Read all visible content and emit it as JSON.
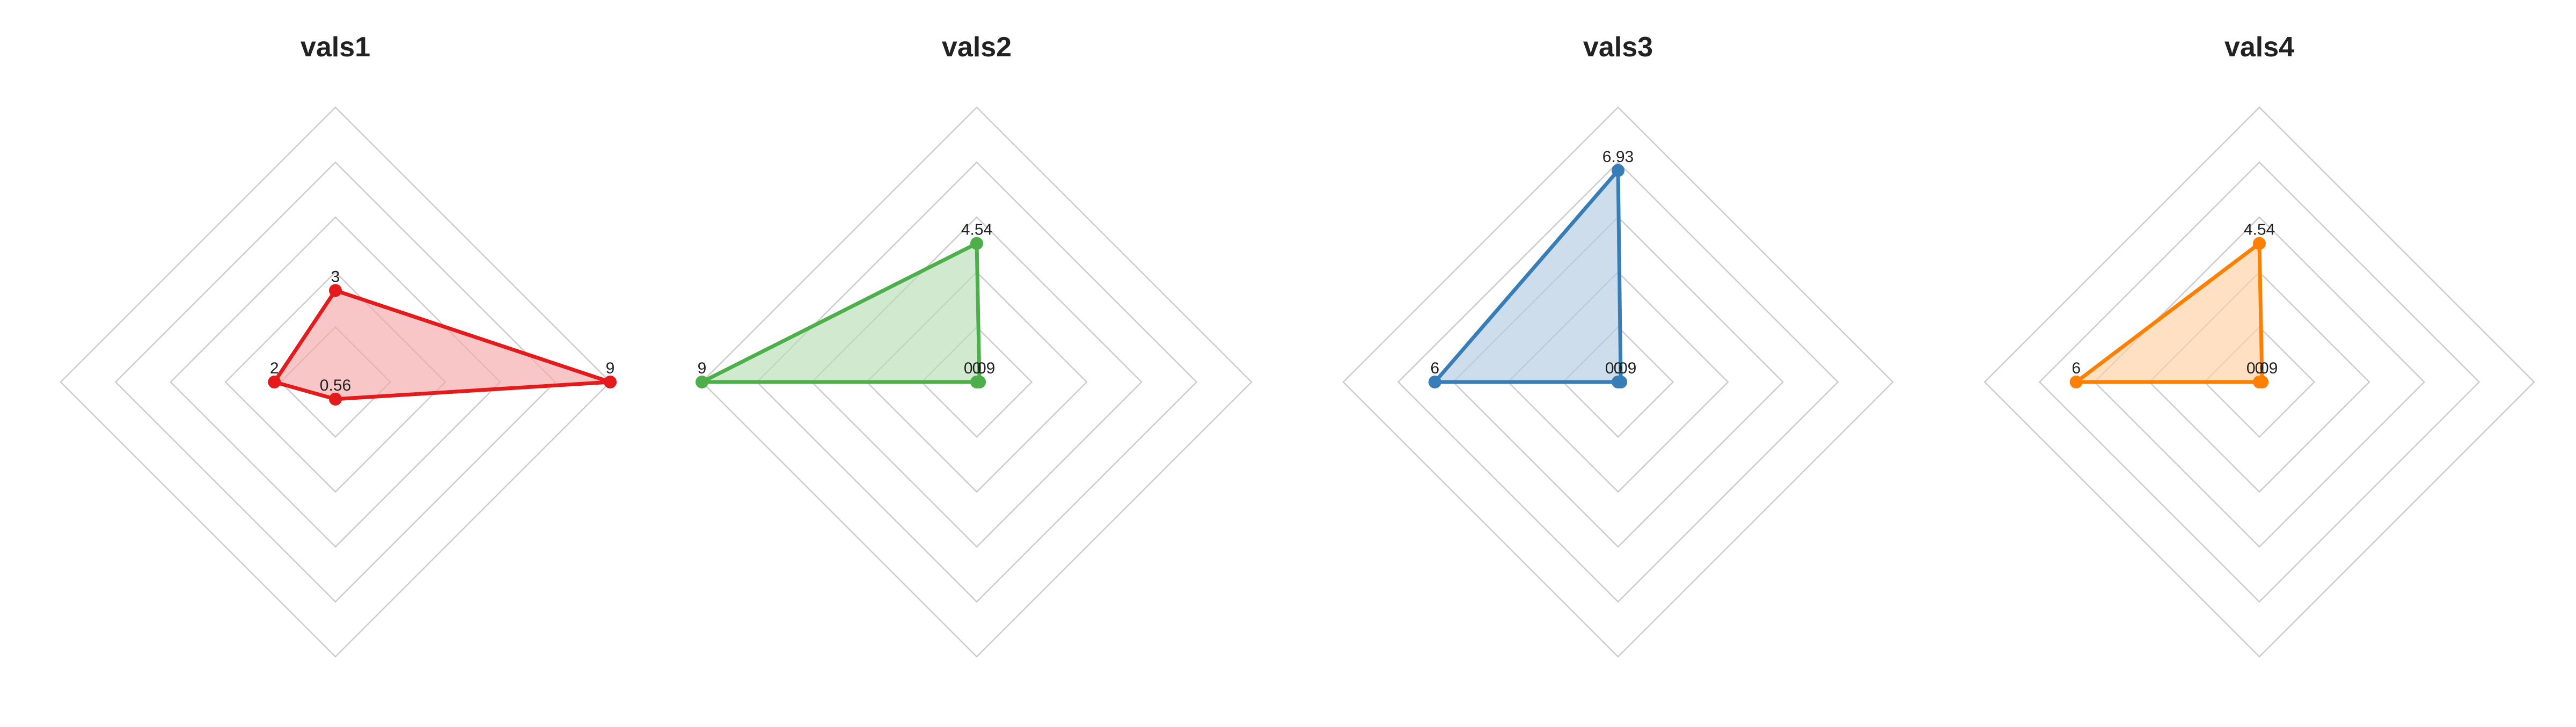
{
  "chart_data": [
    {
      "type": "radar",
      "title": "vals1",
      "color": "#e41a1c",
      "fill_color": "#f4a8a9",
      "axis_max": 9,
      "grid_levels": 5,
      "grid": true,
      "values": [
        3,
        9,
        0.56,
        2
      ],
      "labels": [
        "3",
        "9",
        "0.56",
        "2"
      ]
    },
    {
      "type": "radar",
      "title": "vals2",
      "color": "#4daf4a",
      "fill_color": "#b8dfb6",
      "axis_max": 9,
      "grid_levels": 5,
      "grid": true,
      "values": [
        4.54,
        0.09,
        0,
        9
      ],
      "labels": [
        "4.54",
        "0.09",
        "0",
        "9"
      ]
    },
    {
      "type": "radar",
      "title": "vals3",
      "color": "#377eb8",
      "fill_color": "#b3cbe2",
      "axis_max": 9,
      "grid_levels": 5,
      "grid": true,
      "values": [
        6.93,
        0.09,
        0,
        6
      ],
      "labels": [
        "6.93",
        "0.09",
        "0",
        "6"
      ]
    },
    {
      "type": "radar",
      "title": "vals4",
      "color": "#ff7f00",
      "fill_color": "#ffcfa1",
      "axis_max": 9,
      "grid_levels": 5,
      "grid": true,
      "values": [
        4.54,
        0.09,
        0,
        6
      ],
      "labels": [
        "4.54",
        "0.09",
        "0",
        "6"
      ]
    }
  ]
}
